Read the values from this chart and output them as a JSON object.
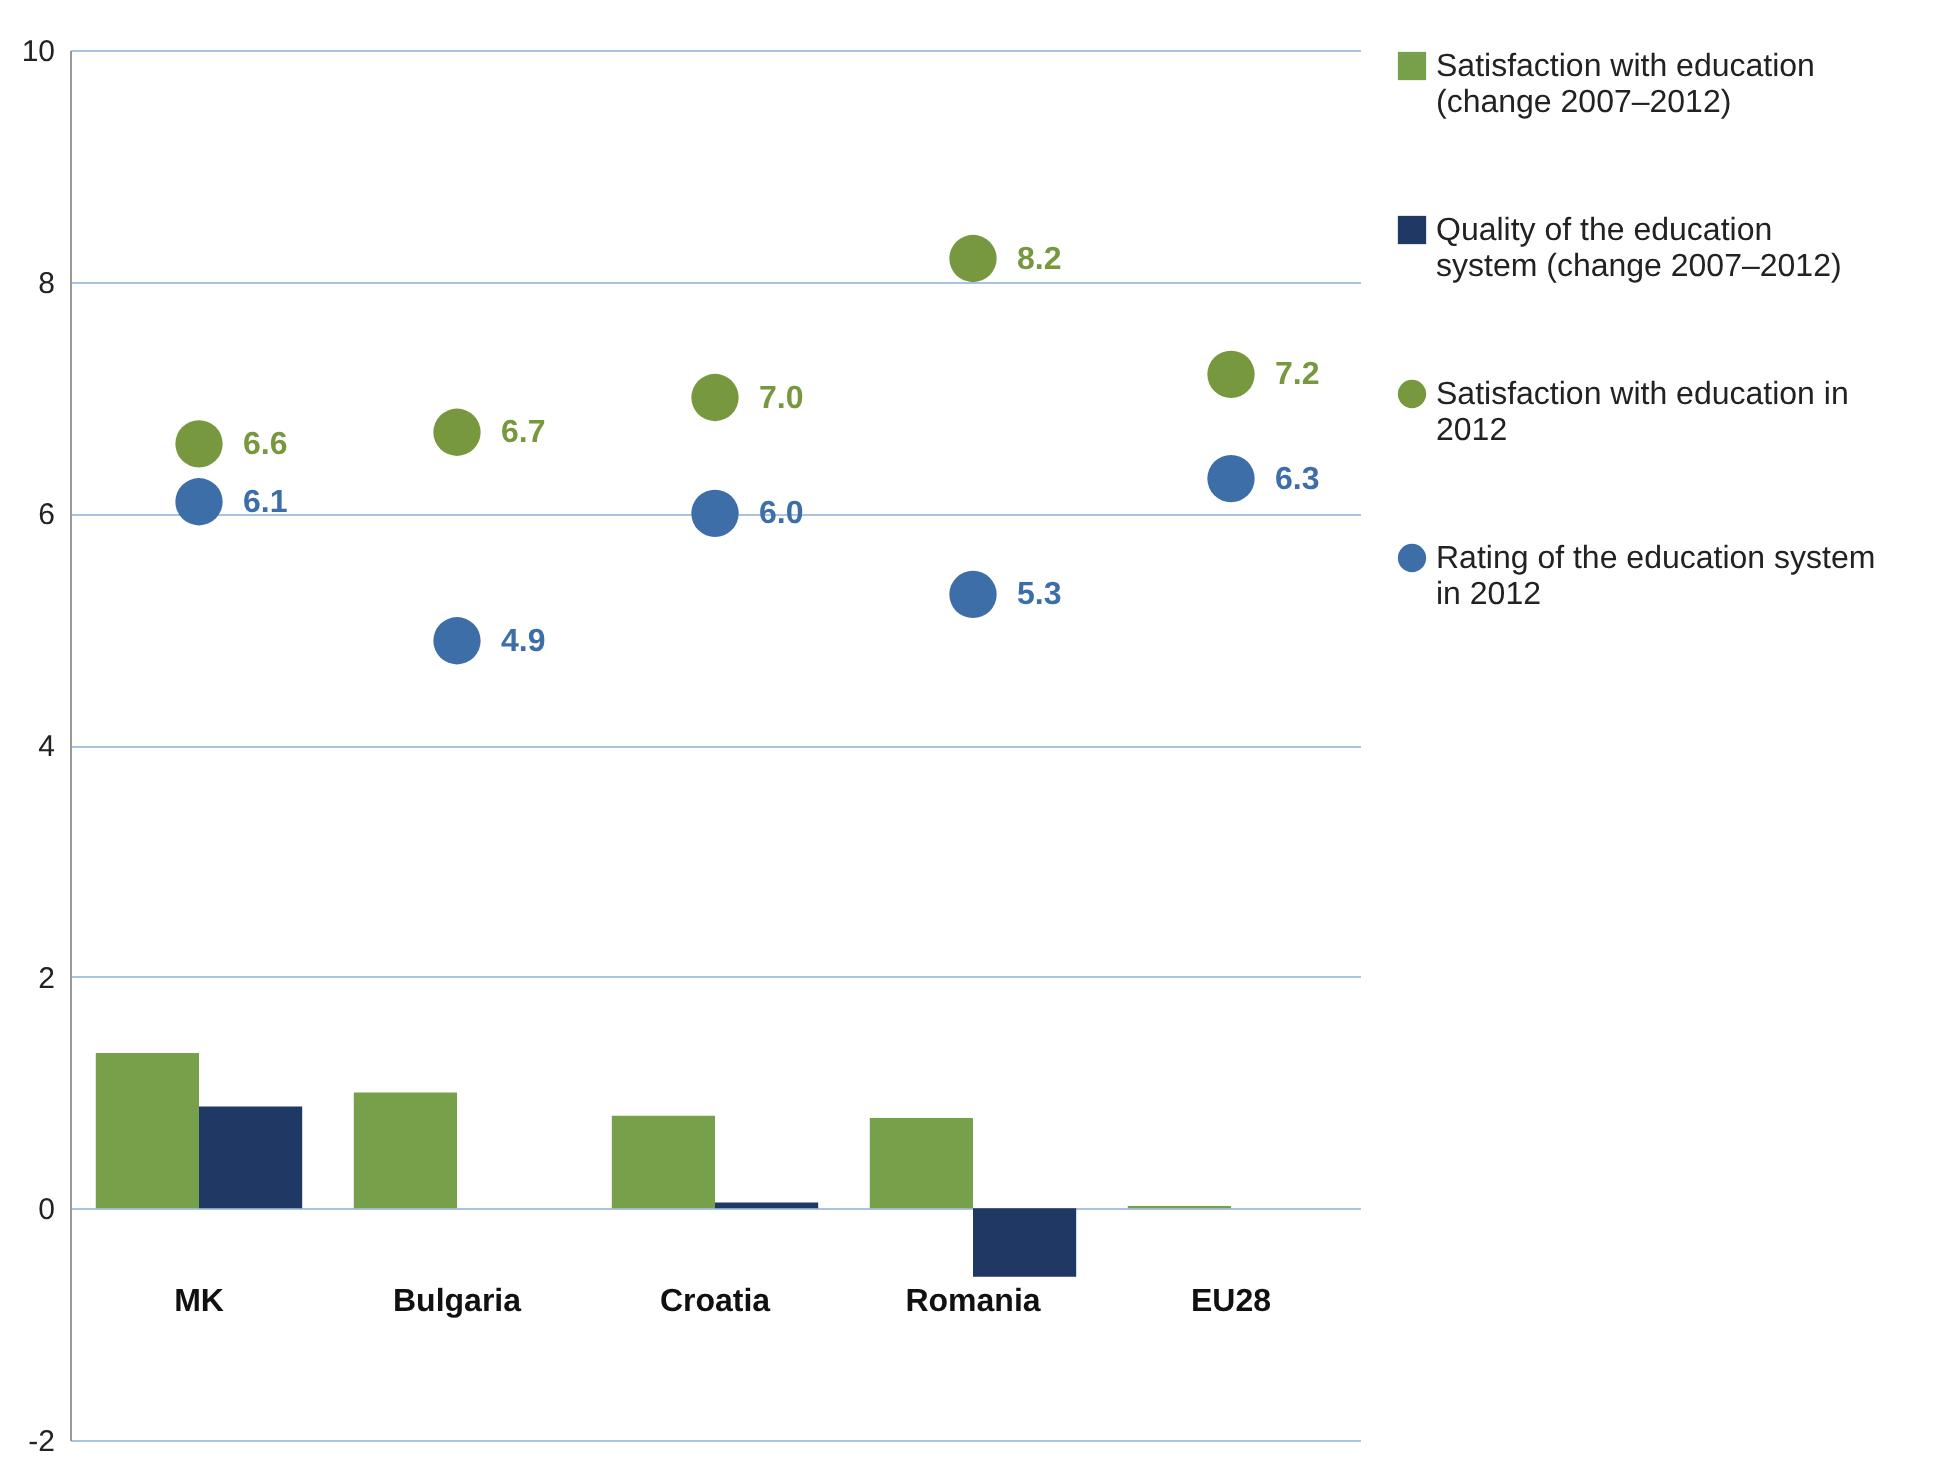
{
  "chart_data": {
    "type": "bar",
    "categories": [
      "MK",
      "Bulgaria",
      "Croatia",
      "Romania",
      "EU28"
    ],
    "series": [
      {
        "name": "Satisfaction with education (change 2007–2012)",
        "color": "#77a04a",
        "values": [
          1.34,
          1.0,
          0.8,
          0.78,
          0.02
        ]
      },
      {
        "name": "Quality of the education system  (change 2007–2012)",
        "color": "#1f3864",
        "values": [
          0.88,
          0,
          0.05,
          -0.59,
          0
        ]
      },
      {
        "name": "Satisfaction with education in 2012",
        "type": "scatter",
        "color": "#77983f",
        "values": [
          6.6,
          6.7,
          7.0,
          8.2,
          7.2
        ],
        "value_labels": [
          "6.6",
          "6.7",
          "7.0",
          "8.2",
          "7.2"
        ]
      },
      {
        "name": "Rating of the education system in 2012",
        "type": "scatter",
        "color": "#3e6ea8",
        "values": [
          6.1,
          4.9,
          6.0,
          5.3,
          6.3
        ],
        "value_labels": [
          "6.1",
          "4.9",
          "6.0",
          "5.3",
          "6.3"
        ]
      }
    ],
    "ylim": [
      -2,
      10
    ],
    "yticks": [
      -2,
      0,
      2,
      4,
      6,
      8,
      10
    ],
    "grid": "y",
    "legend": "right",
    "marker": "circle"
  }
}
